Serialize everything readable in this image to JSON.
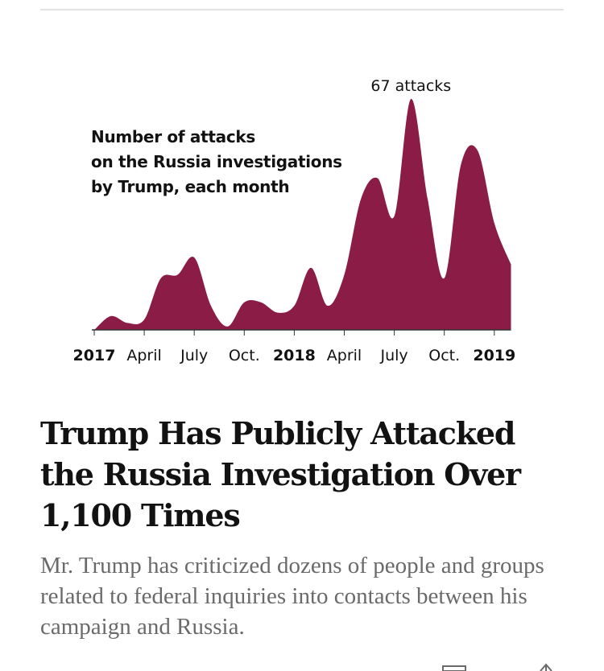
{
  "article": {
    "headline": "Trump Has Publicly Attacked the Russia Investigation Over 1,100 Times",
    "summary": "Mr. Trump has criticized dozens of people and groups related to federal inquiries into contacts between his campaign and Russia."
  },
  "chart_data": {
    "type": "area",
    "title_lines": [
      "Number of attacks",
      "on the Russia investigations",
      "by Trump, each month"
    ],
    "x": [
      "2017-01",
      "2017-02",
      "2017-03",
      "2017-04",
      "2017-05",
      "2017-06",
      "2017-07",
      "2017-08",
      "2017-09",
      "2017-10",
      "2017-11",
      "2017-12",
      "2018-01",
      "2018-02",
      "2018-03",
      "2018-04",
      "2018-05",
      "2018-06",
      "2018-07",
      "2018-08",
      "2018-09",
      "2018-10",
      "2018-11",
      "2018-12",
      "2019-01",
      "2019-02"
    ],
    "values": [
      0,
      4,
      2,
      3,
      15,
      16,
      21,
      7,
      1,
      8,
      8,
      5,
      7,
      18,
      7,
      16,
      38,
      44,
      33,
      67,
      38,
      15,
      48,
      52,
      31,
      19
    ],
    "ylim": [
      0,
      67
    ],
    "x_ticks": [
      {
        "label": "2017",
        "index": 0,
        "bold": true
      },
      {
        "label": "April",
        "index": 3,
        "bold": false
      },
      {
        "label": "July",
        "index": 6,
        "bold": false
      },
      {
        "label": "Oct.",
        "index": 9,
        "bold": false
      },
      {
        "label": "2018",
        "index": 12,
        "bold": true
      },
      {
        "label": "April",
        "index": 15,
        "bold": false
      },
      {
        "label": "July",
        "index": 18,
        "bold": false
      },
      {
        "label": "Oct.",
        "index": 21,
        "bold": false
      },
      {
        "label": "2019",
        "index": 24,
        "bold": true
      }
    ],
    "annotation": {
      "text": "67 attacks",
      "index": 19
    },
    "color": "#8b1c46",
    "grid": false
  },
  "toolbar": {
    "icons": [
      "bookmark-icon",
      "share-icon"
    ]
  }
}
